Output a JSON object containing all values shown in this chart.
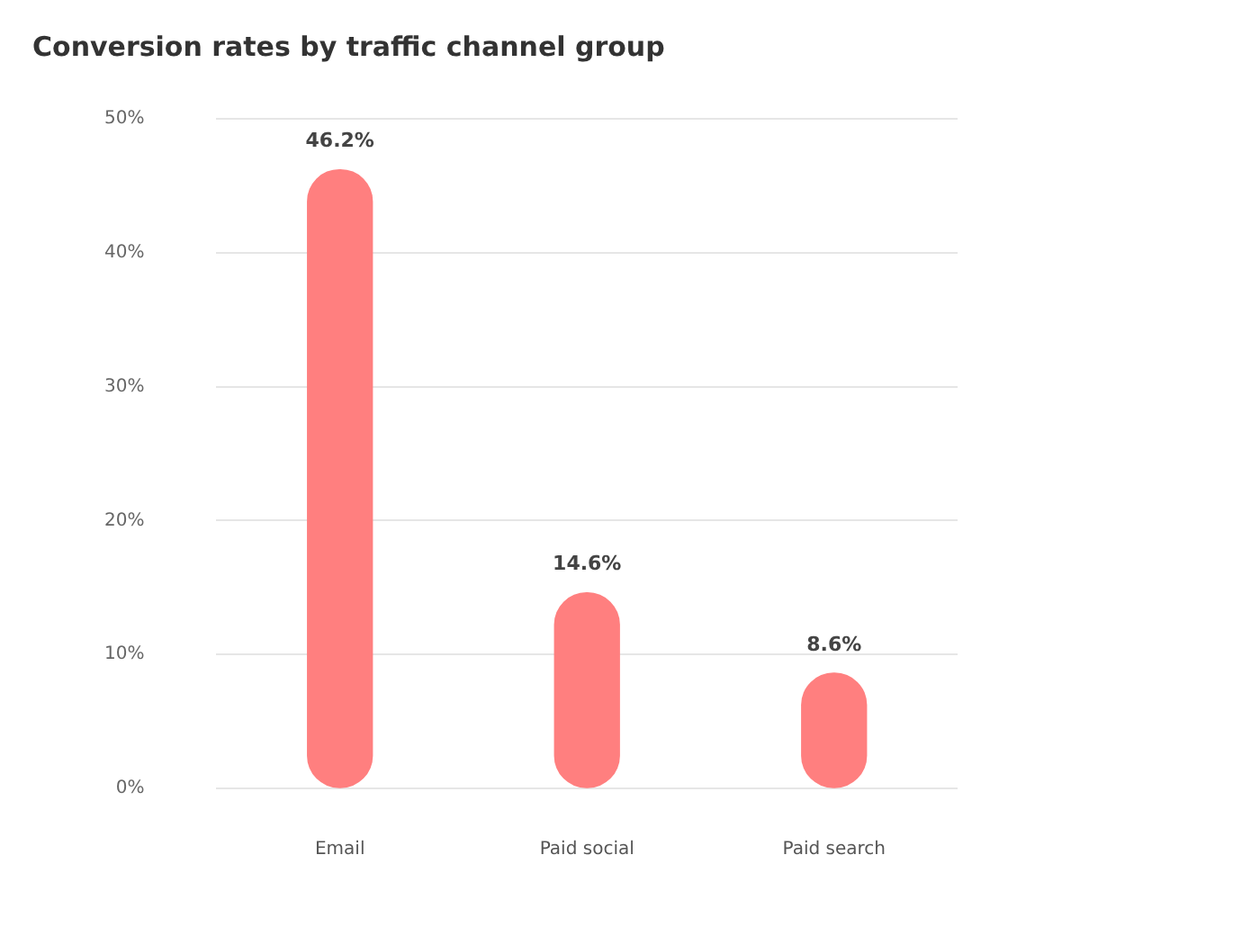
{
  "chart_data": {
    "type": "bar",
    "title": "Conversion rates by traffic channel group",
    "categories": [
      "Email",
      "Paid social",
      "Paid search"
    ],
    "values": [
      46.2,
      14.6,
      8.6
    ],
    "color": "#ff7f7f",
    "value_labels": [
      "46.2%",
      "14.6%",
      "8.6%"
    ],
    "ylim": [
      0,
      50
    ],
    "yticks": [
      {
        "value": 0,
        "label": "0%"
      },
      {
        "value": 10,
        "label": "10%"
      },
      {
        "value": 20,
        "label": "20%"
      },
      {
        "value": 30,
        "label": "30%"
      },
      {
        "value": 40,
        "label": "40%"
      },
      {
        "value": 50,
        "label": "50%"
      }
    ],
    "grid": "y",
    "legend": false
  }
}
